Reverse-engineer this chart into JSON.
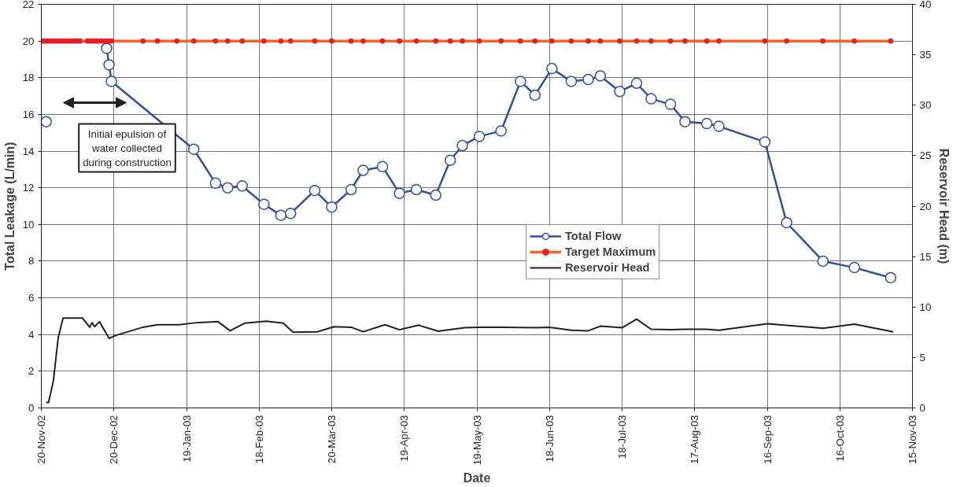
{
  "chart_data": {
    "type": "line",
    "xlabel": "Date",
    "ylabel": "Total Leakage (L/min)",
    "y2label": "Reservoir Head (m)",
    "xlim": [
      "2002-11-20",
      "2003-11-15"
    ],
    "xticks": [
      {
        "value": "2002-11-20",
        "label": "20-Nov-02"
      },
      {
        "value": "2002-12-20",
        "label": "20-Dec-02"
      },
      {
        "value": "2003-01-19",
        "label": "19-Jan-03"
      },
      {
        "value": "2003-02-18",
        "label": "18-Feb-03"
      },
      {
        "value": "2003-03-20",
        "label": "20-Mar-03"
      },
      {
        "value": "2003-04-19",
        "label": "19-Apr-03"
      },
      {
        "value": "2003-05-19",
        "label": "19-May-03"
      },
      {
        "value": "2003-06-18",
        "label": "18-Jun-03"
      },
      {
        "value": "2003-07-18",
        "label": "18-Jul-03"
      },
      {
        "value": "2003-08-17",
        "label": "17-Aug-03"
      },
      {
        "value": "2003-09-16",
        "label": "16-Sep-03"
      },
      {
        "value": "2003-10-16",
        "label": "16-Oct-03"
      },
      {
        "value": "2003-11-15",
        "label": "15-Nov-03"
      }
    ],
    "ylim": [
      0,
      22
    ],
    "yticks": [
      0,
      2,
      4,
      6,
      8,
      10,
      12,
      14,
      16,
      18,
      20,
      22
    ],
    "y2lim": [
      0,
      40
    ],
    "y2ticks": [
      0,
      5,
      10,
      15,
      20,
      25,
      30,
      35,
      40
    ],
    "grid": true,
    "legend": "center right",
    "annotations": [
      "Initial epulsion of\nwater collected\nduring construction"
    ],
    "series": [
      {
        "name": "Total Flow",
        "color": "#2e4fa3",
        "marker": "circle",
        "x": [
          "2002-11-22",
          "2002-12-05",
          "2002-12-17",
          "2002-12-18",
          "2002-12-19",
          "2003-01-22",
          "2003-01-31",
          "2003-02-05",
          "2003-02-11",
          "2003-02-20",
          "2003-02-27",
          "2003-03-03",
          "2003-03-13",
          "2003-03-20",
          "2003-03-28",
          "2003-04-02",
          "2003-04-10",
          "2003-04-17",
          "2003-04-24",
          "2003-05-02",
          "2003-05-08",
          "2003-05-13",
          "2003-05-20",
          "2003-05-29",
          "2003-06-06",
          "2003-06-12",
          "2003-06-19",
          "2003-06-27",
          "2003-07-04",
          "2003-07-09",
          "2003-07-17",
          "2003-07-24",
          "2003-07-30",
          "2003-08-07",
          "2003-08-13",
          "2003-08-22",
          "2003-08-27",
          "2003-09-15",
          "2003-09-24",
          "2003-10-09",
          "2003-10-22",
          "2003-11-06"
        ],
        "values": [
          15.6,
          null,
          19.6,
          18.7,
          17.8,
          14.1,
          12.25,
          12.0,
          12.1,
          11.1,
          10.5,
          10.6,
          11.85,
          10.95,
          11.9,
          12.95,
          13.15,
          11.7,
          11.9,
          11.6,
          13.5,
          14.3,
          14.8,
          15.1,
          17.8,
          17.05,
          18.5,
          17.8,
          17.9,
          18.1,
          17.25,
          17.7,
          16.85,
          16.55,
          15.6,
          15.5,
          15.35,
          14.5,
          10.1,
          8.0,
          7.65,
          7.1
        ]
      },
      {
        "name": "Target Maximum",
        "color": "#f26522",
        "marker": "circle",
        "x": [
          "2002-11-20",
          "2002-11-21",
          "2002-11-22",
          "2002-11-23",
          "2002-11-24",
          "2002-11-25",
          "2002-11-26",
          "2002-11-27",
          "2002-11-28",
          "2002-11-29",
          "2002-11-30",
          "2002-12-01",
          "2002-12-02",
          "2002-12-03",
          "2002-12-04",
          "2002-12-05",
          "2002-12-06",
          "2002-12-09",
          "2002-12-10",
          "2002-12-11",
          "2002-12-12",
          "2002-12-13",
          "2002-12-14",
          "2002-12-15",
          "2002-12-16",
          "2002-12-17",
          "2002-12-18",
          "2002-12-19",
          "2003-01-01",
          "2003-01-07",
          "2003-01-15",
          "2003-01-22",
          "2003-01-31",
          "2003-02-05",
          "2003-02-11",
          "2003-02-20",
          "2003-02-27",
          "2003-03-03",
          "2003-03-13",
          "2003-03-20",
          "2003-03-28",
          "2003-04-02",
          "2003-04-10",
          "2003-04-17",
          "2003-04-24",
          "2003-05-02",
          "2003-05-08",
          "2003-05-13",
          "2003-05-20",
          "2003-05-29",
          "2003-06-06",
          "2003-06-12",
          "2003-06-19",
          "2003-06-27",
          "2003-07-04",
          "2003-07-09",
          "2003-07-17",
          "2003-07-24",
          "2003-07-30",
          "2003-08-07",
          "2003-08-13",
          "2003-08-22",
          "2003-08-27",
          "2003-09-15",
          "2003-09-24",
          "2003-10-09",
          "2003-10-22",
          "2003-11-06"
        ],
        "values": [
          20,
          20,
          20,
          20,
          20,
          20,
          20,
          20,
          20,
          20,
          20,
          20,
          20,
          20,
          20,
          20,
          20,
          20,
          20,
          20,
          20,
          20,
          20,
          20,
          20,
          20,
          20,
          20,
          20,
          20,
          20,
          20,
          20,
          20,
          20,
          20,
          20,
          20,
          20,
          20,
          20,
          20,
          20,
          20,
          20,
          20,
          20,
          20,
          20,
          20,
          20,
          20,
          20,
          20,
          20,
          20,
          20,
          20,
          20,
          20,
          20,
          20,
          20,
          20,
          20,
          20,
          20,
          20
        ]
      },
      {
        "name": "Reservoir Head",
        "color": "#231f20",
        "marker": "none",
        "axis": "y2",
        "x": [
          "2002-11-22",
          "2002-11-23",
          "2002-11-25",
          "2002-11-27",
          "2002-11-29",
          "2002-12-07",
          "2002-12-10",
          "2002-12-11",
          "2002-12-12",
          "2002-12-14",
          "2002-12-18",
          "2002-12-21",
          "2003-01-01",
          "2003-01-07",
          "2003-01-16",
          "2003-01-23",
          "2003-02-01",
          "2003-02-06",
          "2003-02-12",
          "2003-02-21",
          "2003-02-28",
          "2003-03-04",
          "2003-03-14",
          "2003-03-21",
          "2003-03-28",
          "2003-04-02",
          "2003-04-11",
          "2003-04-17",
          "2003-04-25",
          "2003-05-03",
          "2003-05-09",
          "2003-05-14",
          "2003-05-20",
          "2003-05-29",
          "2003-06-13",
          "2003-06-18",
          "2003-06-27",
          "2003-07-04",
          "2003-07-09",
          "2003-07-18",
          "2003-07-24",
          "2003-07-30",
          "2003-08-07",
          "2003-08-13",
          "2003-08-22",
          "2003-08-27",
          "2003-09-16",
          "2003-10-09",
          "2003-10-22",
          "2003-11-07"
        ],
        "values": [
          0.55,
          0.55,
          2.7,
          7.0,
          8.9,
          8.9,
          8.0,
          8.45,
          8.05,
          8.55,
          6.9,
          7.2,
          8.0,
          8.25,
          8.25,
          8.45,
          8.55,
          7.65,
          8.4,
          8.6,
          8.4,
          7.5,
          7.55,
          8.05,
          8.0,
          7.55,
          8.25,
          7.75,
          8.2,
          7.6,
          7.8,
          7.95,
          8.0,
          8.0,
          7.95,
          8.0,
          7.7,
          7.65,
          8.1,
          7.95,
          8.8,
          7.8,
          7.75,
          7.8,
          7.8,
          7.7,
          8.35,
          7.9,
          8.3,
          7.55
        ]
      }
    ]
  }
}
